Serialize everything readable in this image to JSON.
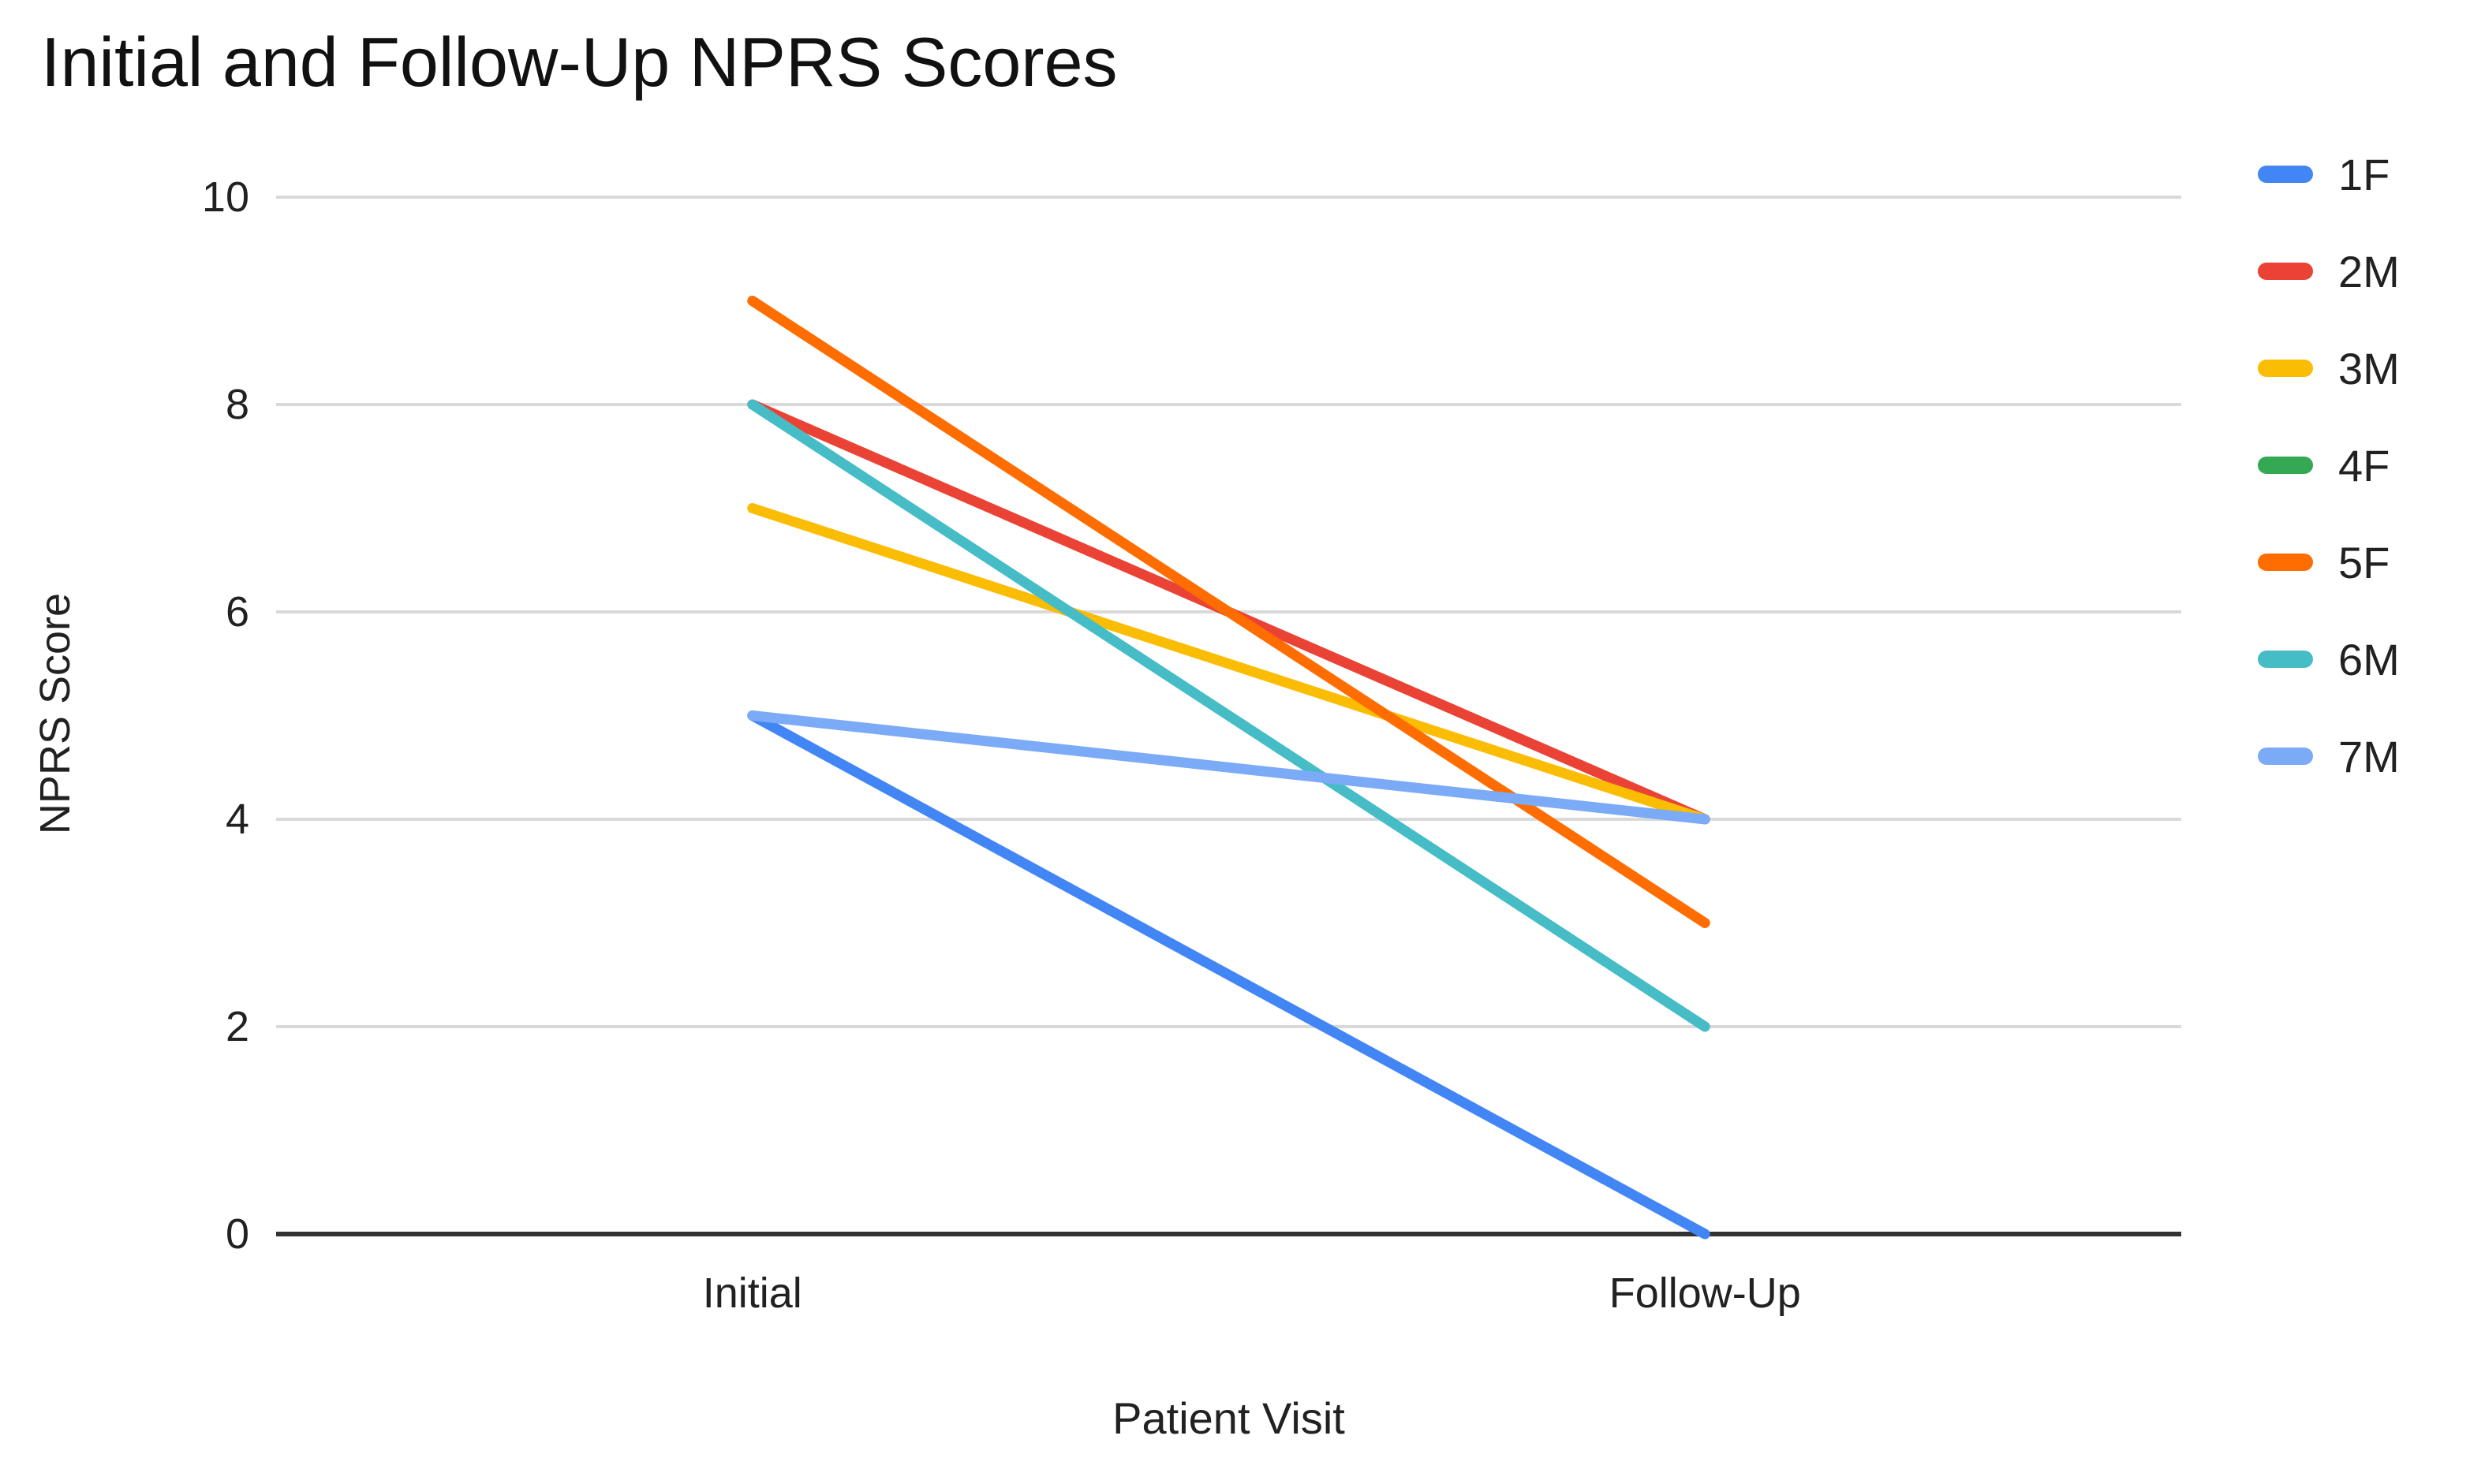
{
  "page": {
    "background": "#ffffff"
  },
  "chart_data": {
    "type": "line",
    "title": "Initial and Follow-Up NPRS Scores",
    "xlabel": "Patient Visit",
    "ylabel": "NPRS Score",
    "categories": [
      "Initial",
      "Follow-Up"
    ],
    "ylim": [
      0,
      10
    ],
    "yticks": [
      0,
      2,
      4,
      6,
      8,
      10
    ],
    "grid": true,
    "legend_position": "right",
    "series": [
      {
        "name": "1F",
        "color": "#4285F4",
        "values": [
          5,
          0
        ]
      },
      {
        "name": "2M",
        "color": "#EA4335",
        "values": [
          8,
          4
        ]
      },
      {
        "name": "3M",
        "color": "#FBBC04",
        "values": [
          7,
          4
        ]
      },
      {
        "name": "4F",
        "color": "#34A853",
        "values": null,
        "note": "legend entry shown but line not visible in chart (fully overlapped by other series)"
      },
      {
        "name": "5F",
        "color": "#FF6D01",
        "values": [
          9,
          3
        ]
      },
      {
        "name": "6M",
        "color": "#46BDC6",
        "values": [
          8,
          2
        ]
      },
      {
        "name": "7M",
        "color": "#7BAAF7",
        "values": [
          5,
          4
        ]
      }
    ]
  },
  "style_colors": {
    "gridline": "#d9d9d9",
    "axis_line": "#333333",
    "tick_label": "#212121"
  }
}
